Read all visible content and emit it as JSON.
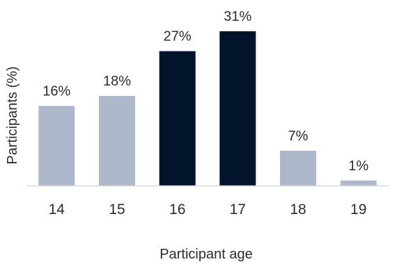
{
  "chart_data": {
    "type": "bar",
    "categories": [
      "14",
      "15",
      "16",
      "17",
      "18",
      "19"
    ],
    "values": [
      16,
      18,
      27,
      31,
      7,
      1
    ],
    "value_labels": [
      "16%",
      "18%",
      "27%",
      "31%",
      "7%",
      "1%"
    ],
    "highlighted": [
      false,
      false,
      true,
      true,
      false,
      false
    ],
    "title": "",
    "xlabel": "Participant age",
    "ylabel": "Participants (%)",
    "ylim": [
      0,
      31
    ],
    "grid": false,
    "legend": "none",
    "colors": {
      "default_bar": "#adb9ca",
      "highlight_bar": "#01142b",
      "axis": "#d9d9d9"
    }
  }
}
